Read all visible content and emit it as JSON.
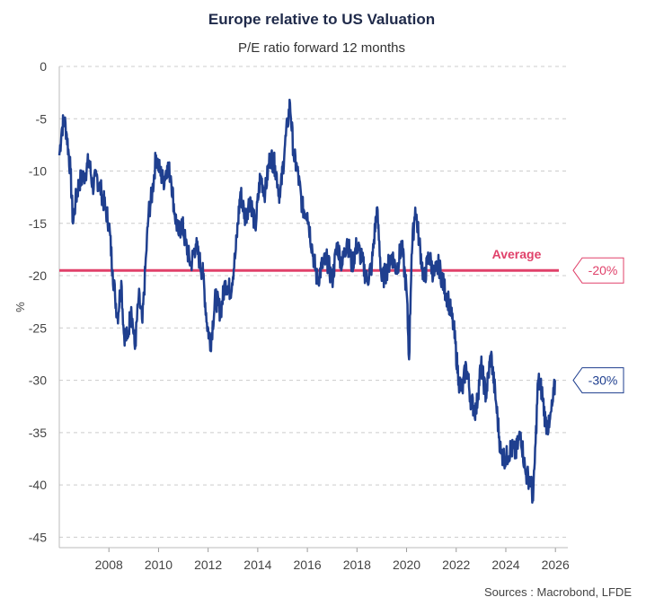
{
  "chart_data": {
    "type": "line",
    "title": "Europe relative to US Valuation",
    "subtitle": "P/E ratio forward 12 months",
    "ylabel": "%",
    "xlim": [
      2006.0,
      2026.5
    ],
    "ylim": [
      -46,
      0
    ],
    "yticks": [
      0,
      -5,
      -10,
      -15,
      -20,
      -25,
      -30,
      -35,
      -40,
      -45
    ],
    "xticks": [
      2008,
      2010,
      2012,
      2014,
      2016,
      2018,
      2020,
      2022,
      2024,
      2026
    ],
    "grid": "horizontal dashed",
    "series": [
      {
        "name": "Europe relative to US P/E forward 12m",
        "color": "#1f3f8f",
        "x": [
          2006.0,
          2006.1,
          2006.2,
          2006.3,
          2006.45,
          2006.55,
          2006.65,
          2006.8,
          2007.0,
          2007.2,
          2007.35,
          2007.5,
          2007.7,
          2007.85,
          2008.0,
          2008.15,
          2008.25,
          2008.35,
          2008.5,
          2008.6,
          2008.75,
          2008.9,
          2009.05,
          2009.2,
          2009.35,
          2009.5,
          2009.6,
          2009.75,
          2009.9,
          2010.05,
          2010.2,
          2010.35,
          2010.5,
          2010.65,
          2010.8,
          2010.95,
          2011.1,
          2011.3,
          2011.5,
          2011.65,
          2011.8,
          2011.95,
          2012.1,
          2012.3,
          2012.5,
          2012.7,
          2012.9,
          2013.1,
          2013.3,
          2013.5,
          2013.7,
          2013.9,
          2014.1,
          2014.3,
          2014.5,
          2014.7,
          2014.9,
          2015.1,
          2015.2,
          2015.3,
          2015.45,
          2015.6,
          2015.8,
          2016.0,
          2016.2,
          2016.4,
          2016.6,
          2016.8,
          2017.0,
          2017.2,
          2017.4,
          2017.6,
          2017.8,
          2018.0,
          2018.2,
          2018.4,
          2018.6,
          2018.8,
          2019.0,
          2019.2,
          2019.4,
          2019.6,
          2019.8,
          2020.0,
          2020.1,
          2020.2,
          2020.35,
          2020.5,
          2020.7,
          2020.9,
          2021.1,
          2021.3,
          2021.5,
          2021.7,
          2021.9,
          2022.1,
          2022.25,
          2022.4,
          2022.6,
          2022.8,
          2023.0,
          2023.2,
          2023.4,
          2023.6,
          2023.8,
          2024.0,
          2024.2,
          2024.4,
          2024.6,
          2024.8,
          2025.0,
          2025.1,
          2025.2,
          2025.3,
          2025.45,
          2025.6,
          2025.75,
          2025.9,
          2026.0
        ],
        "values": [
          -8.5,
          -6.0,
          -5.0,
          -6.5,
          -10.0,
          -15.0,
          -13.0,
          -11.0,
          -10.5,
          -9.0,
          -11.5,
          -10.5,
          -12.0,
          -13.5,
          -15.0,
          -19.5,
          -22.0,
          -24.0,
          -20.5,
          -25.5,
          -26.0,
          -23.0,
          -27.0,
          -22.0,
          -24.5,
          -18.0,
          -14.0,
          -12.0,
          -8.5,
          -10.0,
          -11.0,
          -9.5,
          -10.5,
          -14.0,
          -16.0,
          -15.0,
          -17.0,
          -19.0,
          -17.0,
          -18.5,
          -20.0,
          -24.5,
          -26.5,
          -22.0,
          -23.5,
          -20.5,
          -21.5,
          -18.0,
          -12.0,
          -14.5,
          -12.5,
          -15.5,
          -10.5,
          -12.0,
          -8.5,
          -9.5,
          -12.5,
          -7.5,
          -5.5,
          -3.5,
          -8.5,
          -10.0,
          -13.5,
          -14.0,
          -17.5,
          -20.5,
          -19.0,
          -18.5,
          -20.5,
          -17.0,
          -19.0,
          -16.5,
          -19.0,
          -17.0,
          -18.5,
          -20.5,
          -19.0,
          -13.5,
          -20.5,
          -19.5,
          -18.0,
          -19.5,
          -17.0,
          -21.5,
          -28.0,
          -18.0,
          -13.5,
          -16.5,
          -20.5,
          -18.0,
          -20.0,
          -19.0,
          -21.0,
          -22.5,
          -25.0,
          -30.0,
          -31.0,
          -28.5,
          -32.0,
          -33.0,
          -28.5,
          -31.5,
          -27.5,
          -32.0,
          -37.0,
          -37.5,
          -36.5,
          -37.0,
          -35.0,
          -39.0,
          -39.5,
          -41.5,
          -36.0,
          -30.0,
          -31.0,
          -34.0,
          -34.5,
          -32.0,
          -30.0
        ]
      }
    ],
    "average": {
      "value": -19.5,
      "label": "Average",
      "color": "#e0416a",
      "callout": "-20%"
    },
    "last_value": {
      "callout": "-30%",
      "color": "#1f3f8f"
    },
    "source": "Sources : Macrobond, LFDE"
  }
}
